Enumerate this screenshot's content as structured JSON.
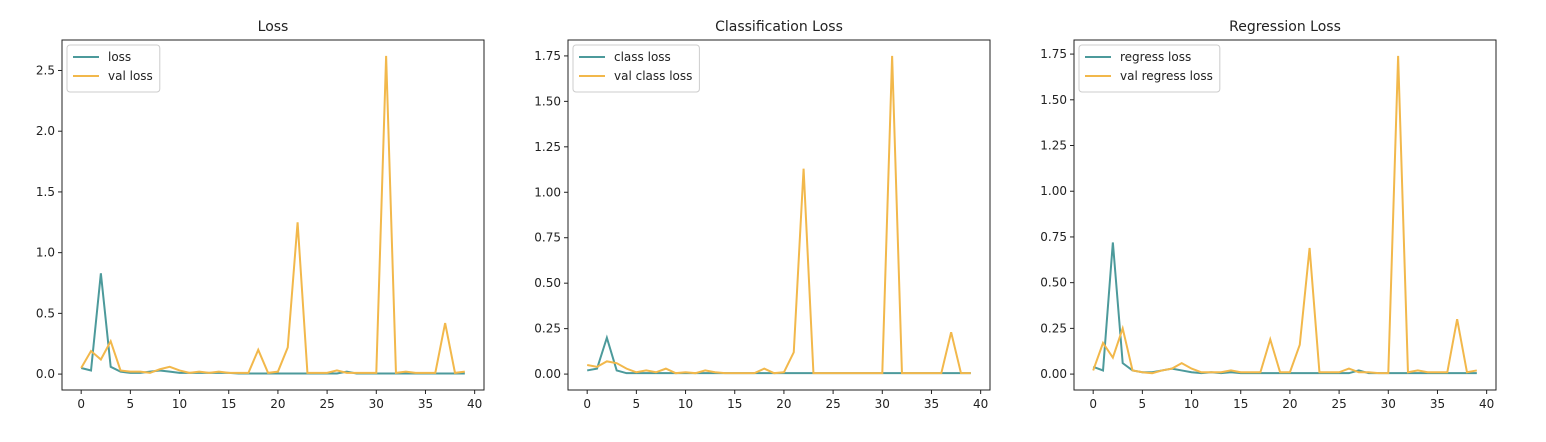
{
  "chart_data": [
    {
      "type": "line",
      "title": "Loss",
      "x": [
        0,
        1,
        2,
        3,
        4,
        5,
        6,
        7,
        8,
        9,
        10,
        11,
        12,
        13,
        14,
        15,
        16,
        17,
        18,
        19,
        20,
        21,
        22,
        23,
        24,
        25,
        26,
        27,
        28,
        29,
        30,
        31,
        32,
        33,
        34,
        35,
        36,
        37,
        38,
        39
      ],
      "series": [
        {
          "name": "loss",
          "color": "#4c9a9b",
          "values": [
            0.05,
            0.03,
            0.83,
            0.06,
            0.02,
            0.01,
            0.01,
            0.02,
            0.03,
            0.02,
            0.01,
            0.01,
            0.01,
            0.01,
            0.01,
            0.01,
            0.005,
            0.005,
            0.005,
            0.005,
            0.005,
            0.005,
            0.005,
            0.005,
            0.005,
            0.005,
            0.005,
            0.02,
            0.005,
            0.005,
            0.005,
            0.005,
            0.005,
            0.005,
            0.005,
            0.005,
            0.005,
            0.005,
            0.005,
            0.005
          ]
        },
        {
          "name": "val loss",
          "color": "#f2b84b",
          "values": [
            0.05,
            0.19,
            0.12,
            0.27,
            0.03,
            0.02,
            0.02,
            0.01,
            0.04,
            0.06,
            0.03,
            0.01,
            0.02,
            0.01,
            0.02,
            0.01,
            0.01,
            0.01,
            0.2,
            0.01,
            0.02,
            0.22,
            1.25,
            0.01,
            0.01,
            0.01,
            0.03,
            0.01,
            0.01,
            0.01,
            0.01,
            2.62,
            0.01,
            0.02,
            0.01,
            0.01,
            0.01,
            0.42,
            0.01,
            0.02
          ]
        }
      ],
      "xlim": [
        -1.95,
        40.95
      ],
      "xticks": [
        0,
        5,
        10,
        15,
        20,
        25,
        30,
        35,
        40
      ],
      "ylim": [
        -0.131,
        2.751
      ],
      "yticks": [
        {
          "value": 0,
          "label": "0.0"
        },
        0.5,
        {
          "value": 1,
          "label": "1.0"
        },
        1.5,
        {
          "value": 2,
          "label": "2.0"
        },
        2.5
      ],
      "legend": "upper left"
    },
    {
      "type": "line",
      "title": "Classification Loss",
      "x": [
        0,
        1,
        2,
        3,
        4,
        5,
        6,
        7,
        8,
        9,
        10,
        11,
        12,
        13,
        14,
        15,
        16,
        17,
        18,
        19,
        20,
        21,
        22,
        23,
        24,
        25,
        26,
        27,
        28,
        29,
        30,
        31,
        32,
        33,
        34,
        35,
        36,
        37,
        38,
        39
      ],
      "series": [
        {
          "name": "class loss",
          "color": "#4c9a9b",
          "values": [
            0.02,
            0.03,
            0.2,
            0.02,
            0.005,
            0.005,
            0.005,
            0.005,
            0.005,
            0.005,
            0.005,
            0.005,
            0.005,
            0.005,
            0.005,
            0.005,
            0.005,
            0.005,
            0.005,
            0.005,
            0.005,
            0.005,
            0.005,
            0.005,
            0.005,
            0.005,
            0.005,
            0.005,
            0.005,
            0.005,
            0.005,
            0.005,
            0.005,
            0.005,
            0.005,
            0.005,
            0.005,
            0.005,
            0.005,
            0.005
          ]
        },
        {
          "name": "val class loss",
          "color": "#f2b84b",
          "values": [
            0.05,
            0.04,
            0.07,
            0.06,
            0.03,
            0.01,
            0.02,
            0.01,
            0.03,
            0.005,
            0.01,
            0.005,
            0.02,
            0.01,
            0.005,
            0.005,
            0.005,
            0.005,
            0.03,
            0.005,
            0.01,
            0.12,
            1.13,
            0.005,
            0.005,
            0.005,
            0.005,
            0.005,
            0.005,
            0.005,
            0.005,
            1.75,
            0.005,
            0.005,
            0.005,
            0.005,
            0.005,
            0.23,
            0.005,
            0.005
          ]
        }
      ],
      "xlim": [
        -1.95,
        40.95
      ],
      "xticks": [
        0,
        5,
        10,
        15,
        20,
        25,
        30,
        35,
        40
      ],
      "ylim": [
        -0.0875,
        1.8375
      ],
      "yticks": [
        {
          "value": 0,
          "label": "0.00"
        },
        0.25,
        {
          "value": 0.5,
          "label": "0.50"
        },
        0.75,
        {
          "value": 1,
          "label": "1.00"
        },
        1.25,
        {
          "value": 1.5,
          "label": "1.50"
        },
        1.75
      ],
      "legend": "upper left"
    },
    {
      "type": "line",
      "title": "Regression Loss",
      "x": [
        0,
        1,
        2,
        3,
        4,
        5,
        6,
        7,
        8,
        9,
        10,
        11,
        12,
        13,
        14,
        15,
        16,
        17,
        18,
        19,
        20,
        21,
        22,
        23,
        24,
        25,
        26,
        27,
        28,
        29,
        30,
        31,
        32,
        33,
        34,
        35,
        36,
        37,
        38,
        39
      ],
      "series": [
        {
          "name": "regress loss",
          "color": "#4c9a9b",
          "values": [
            0.04,
            0.02,
            0.72,
            0.06,
            0.02,
            0.01,
            0.01,
            0.02,
            0.03,
            0.02,
            0.01,
            0.005,
            0.01,
            0.005,
            0.01,
            0.005,
            0.005,
            0.005,
            0.005,
            0.005,
            0.005,
            0.005,
            0.005,
            0.005,
            0.005,
            0.005,
            0.005,
            0.02,
            0.005,
            0.005,
            0.005,
            0.005,
            0.005,
            0.005,
            0.005,
            0.005,
            0.005,
            0.005,
            0.005,
            0.005
          ]
        },
        {
          "name": "val regress loss",
          "color": "#f2b84b",
          "values": [
            0.02,
            0.17,
            0.09,
            0.25,
            0.02,
            0.01,
            0.005,
            0.02,
            0.03,
            0.06,
            0.03,
            0.01,
            0.01,
            0.01,
            0.02,
            0.01,
            0.01,
            0.01,
            0.19,
            0.01,
            0.01,
            0.16,
            0.69,
            0.01,
            0.01,
            0.01,
            0.03,
            0.01,
            0.01,
            0.005,
            0.005,
            1.74,
            0.01,
            0.02,
            0.01,
            0.01,
            0.01,
            0.3,
            0.01,
            0.02
          ]
        }
      ],
      "xlim": [
        -1.95,
        40.95
      ],
      "xticks": [
        0,
        5,
        10,
        15,
        20,
        25,
        30,
        35,
        40
      ],
      "ylim": [
        -0.087,
        1.827
      ],
      "yticks": [
        {
          "value": 0,
          "label": "0.00"
        },
        0.25,
        {
          "value": 0.5,
          "label": "0.50"
        },
        0.75,
        {
          "value": 1,
          "label": "1.00"
        },
        1.25,
        {
          "value": 1.5,
          "label": "1.50"
        },
        1.75
      ],
      "legend": "upper left"
    }
  ]
}
